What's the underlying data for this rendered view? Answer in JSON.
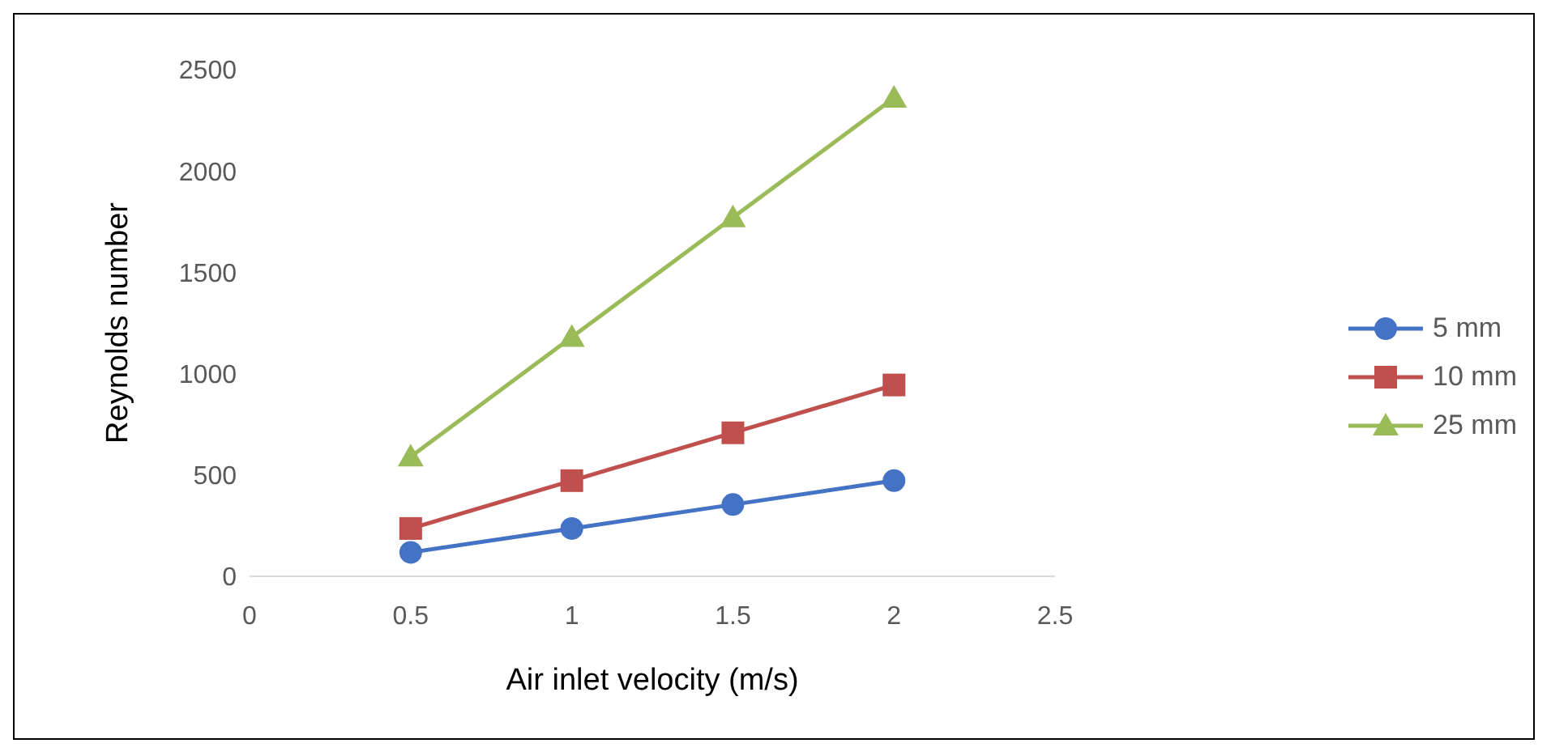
{
  "chart_data": {
    "type": "line",
    "xlabel": "Air inlet velocity (m/s)",
    "ylabel": "Reynolds number",
    "x": [
      0.5,
      1,
      1.5,
      2
    ],
    "xlim": [
      0,
      2.5
    ],
    "xticks": [
      0,
      0.5,
      1,
      1.5,
      2,
      2.5
    ],
    "ylim": [
      0,
      2500
    ],
    "yticks": [
      0,
      500,
      1000,
      1500,
      2000,
      2500
    ],
    "grid": false,
    "legend": "right",
    "series": [
      {
        "name": "5 mm",
        "color": "#4472c4",
        "marker": "circle",
        "values": [
          118,
          236,
          354,
          472
        ]
      },
      {
        "name": "10 mm",
        "color": "#c0504d",
        "marker": "square",
        "values": [
          236,
          472,
          708,
          944
        ]
      },
      {
        "name": "25 mm",
        "color": "#9bbb59",
        "marker": "triangle",
        "values": [
          590,
          1180,
          1770,
          2360
        ]
      }
    ]
  }
}
